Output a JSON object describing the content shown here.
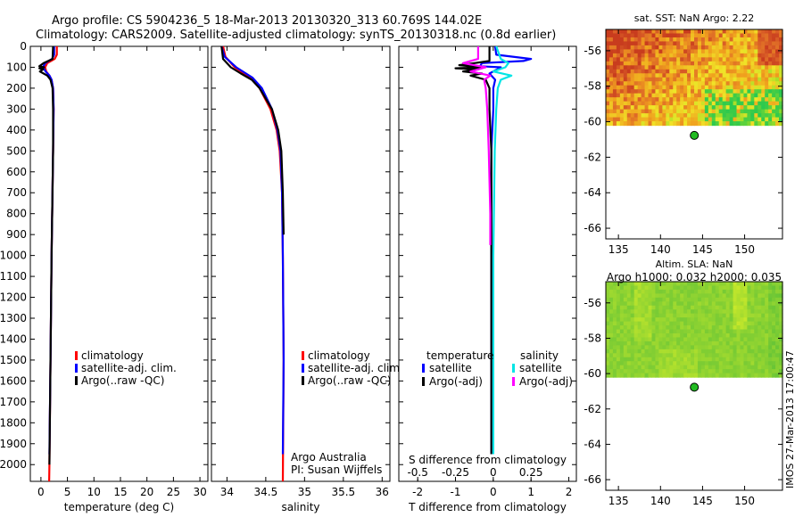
{
  "header": {
    "line1": "Argo profile: CS 5904236_5 18-Mar-2013 20130320_313 60.769S 144.02E",
    "line2": "Climatology: CARS2009. Satellite-adjusted climatology: synTS_20130318.nc (0.8d earlier)"
  },
  "colors": {
    "climatology": "#ff0000",
    "satellite": "#0000ff",
    "argo": "#000000",
    "sal_satellite": "#00e5e5",
    "sal_argo": "#ff00ff"
  },
  "chart_data": [
    {
      "type": "line",
      "id": "temperature",
      "xlabel": "temperature (deg C)",
      "ylabel": "",
      "xlim": [
        -2,
        31.5
      ],
      "ylim": [
        2080,
        0
      ],
      "xticks": [
        0,
        5,
        10,
        15,
        20,
        25,
        30
      ],
      "xtick_labels": [
        "0",
        "5",
        "10",
        "15",
        "20",
        "25",
        "30"
      ],
      "yticks": [
        0,
        100,
        200,
        300,
        400,
        500,
        600,
        700,
        800,
        900,
        1000,
        1100,
        1200,
        1300,
        1400,
        1500,
        1600,
        1700,
        1800,
        1900,
        2000
      ],
      "legend": [
        "climatology",
        "satellite-adj. clim.",
        "Argo(..raw -QC)"
      ],
      "series": [
        {
          "name": "climatology",
          "color": "#ff0000",
          "depth": [
            0,
            40,
            60,
            80,
            100,
            120,
            140,
            160,
            200,
            300,
            500,
            1000,
            1500,
            2000,
            2080
          ],
          "values": [
            3.0,
            3.0,
            2.6,
            1.2,
            0.8,
            1.0,
            1.6,
            2.0,
            2.3,
            2.4,
            2.3,
            2.0,
            1.8,
            1.6,
            1.55
          ]
        },
        {
          "name": "satellite-adj. clim.",
          "color": "#0000ff",
          "depth": [
            0,
            40,
            60,
            80,
            100,
            120,
            140,
            160,
            200,
            300,
            500,
            1000,
            1500,
            1950
          ],
          "values": [
            2.5,
            2.5,
            2.1,
            0.8,
            0.4,
            0.9,
            1.6,
            2.0,
            2.3,
            2.4,
            2.3,
            2.0,
            1.8,
            1.6
          ]
        },
        {
          "name": "Argo(..raw -QC)",
          "color": "#000000",
          "depth": [
            0,
            60,
            80,
            95,
            100,
            105,
            110,
            120,
            130,
            140,
            160,
            200,
            300,
            500,
            1000,
            1500,
            2000
          ],
          "values": [
            2.3,
            2.2,
            0.5,
            -0.3,
            0.6,
            -0.3,
            0.4,
            -0.2,
            0.5,
            1.2,
            1.8,
            2.2,
            2.3,
            2.3,
            2.0,
            1.8,
            1.6
          ]
        }
      ]
    },
    {
      "type": "line",
      "id": "salinity",
      "xlabel": "salinity",
      "ylabel": "",
      "xlim": [
        33.8,
        36.1
      ],
      "ylim": [
        2080,
        0
      ],
      "xticks": [
        34,
        34.5,
        35,
        35.5,
        36
      ],
      "xtick_labels": [
        "34",
        "34.5",
        "35",
        "35.5",
        "36"
      ],
      "legend": [
        "climatology",
        "satellite-adj. clim.",
        "Argo(..raw -QC)"
      ],
      "annotation": [
        "Argo Australia",
        "PI: Susan Wijffels"
      ],
      "series": [
        {
          "name": "climatology",
          "color": "#ff0000",
          "depth": [
            0,
            50,
            100,
            150,
            200,
            300,
            400,
            500,
            700,
            1000,
            1500,
            2080
          ],
          "values": [
            33.95,
            33.98,
            34.1,
            34.3,
            34.42,
            34.56,
            34.64,
            34.68,
            34.71,
            34.72,
            34.73,
            34.72
          ]
        },
        {
          "name": "satellite-adj. clim.",
          "color": "#0000ff",
          "depth": [
            0,
            50,
            100,
            150,
            200,
            300,
            400,
            500,
            700,
            1000,
            1500,
            1950
          ],
          "values": [
            33.93,
            33.97,
            34.12,
            34.33,
            34.45,
            34.58,
            34.65,
            34.69,
            34.71,
            34.72,
            34.73,
            34.72
          ]
        },
        {
          "name": "Argo(..raw -QC)",
          "color": "#000000",
          "depth": [
            0,
            60,
            100,
            130,
            160,
            200,
            300,
            400,
            500,
            700,
            900
          ],
          "values": [
            33.93,
            33.95,
            34.05,
            34.18,
            34.32,
            34.42,
            34.58,
            34.66,
            34.7,
            34.72,
            34.73
          ]
        }
      ]
    },
    {
      "type": "line",
      "id": "difference",
      "xlabel": "T difference from climatology",
      "top_xlabel": "S difference from climatology",
      "xlim": [
        -2.5,
        2.2
      ],
      "ylim": [
        2080,
        0
      ],
      "xticks": [
        -2,
        -1,
        0,
        1,
        2
      ],
      "xtick_labels": [
        "-2",
        "-1",
        "0",
        "1",
        "2"
      ],
      "sticks": [
        -0.5,
        -0.25,
        0,
        0.25
      ],
      "stick_labels": [
        "-0.5",
        "-0.25",
        "0",
        "0.25"
      ],
      "s_scale": 4,
      "legend_headers": [
        "temperature",
        "salinity"
      ],
      "legend": [
        "satellite",
        "Argo(-adj)",
        "satellite",
        "Argo(-adj)"
      ],
      "series": [
        {
          "name": "T satellite",
          "color": "#0000ff",
          "depth": [
            0,
            40,
            60,
            70,
            80,
            95,
            100,
            110,
            130,
            160,
            200,
            300,
            500,
            1000,
            1500,
            1950
          ],
          "values": [
            0.05,
            0.08,
            1.0,
            0.8,
            -0.3,
            -0.35,
            0.2,
            0.1,
            -0.1,
            0.05,
            0.0,
            0.0,
            -0.05,
            -0.05,
            -0.05,
            -0.05
          ]
        },
        {
          "name": "T Argo(-adj)",
          "color": "#000000",
          "depth": [
            0,
            70,
            80,
            90,
            100,
            105,
            110,
            120,
            130,
            140,
            160,
            200,
            300,
            500,
            1000,
            1500,
            1950
          ],
          "values": [
            -0.1,
            -0.1,
            -0.5,
            -0.9,
            -0.3,
            -1.0,
            -0.4,
            -0.8,
            -0.3,
            -0.6,
            -0.2,
            -0.1,
            -0.1,
            -0.05,
            -0.05,
            -0.05,
            -0.05
          ]
        },
        {
          "name": "S satellite",
          "color": "#00e5e5",
          "depth": [
            0,
            60,
            80,
            100,
            120,
            140,
            160,
            200,
            300,
            500,
            1000,
            1500,
            1950
          ],
          "values": [
            0.02,
            0.05,
            0.1,
            0.08,
            0.0,
            0.12,
            0.05,
            0.03,
            0.02,
            0.01,
            0.0,
            0.0,
            0.0
          ]
        },
        {
          "name": "S Argo(-adj)",
          "color": "#ff00ff",
          "depth": [
            0,
            60,
            80,
            100,
            120,
            140,
            160,
            200,
            300,
            500,
            800,
            950
          ],
          "values": [
            -0.1,
            -0.1,
            -0.2,
            -0.05,
            -0.15,
            -0.02,
            -0.06,
            -0.05,
            -0.04,
            -0.03,
            -0.02,
            -0.02
          ]
        }
      ]
    },
    {
      "type": "heatmap",
      "id": "sst_map",
      "title": "sat. SST: NaN Argo: 2.22",
      "xlim": [
        133.5,
        154.5
      ],
      "ylim": [
        -66.6,
        -54.8
      ],
      "xticks": [
        135,
        140,
        145,
        150
      ],
      "xtick_labels": [
        "135",
        "140",
        "145",
        "150"
      ],
      "yticks": [
        -56,
        -58,
        -60,
        -62,
        -64,
        -66
      ],
      "ytick_labels": [
        "-56",
        "-58",
        "-60",
        "-62",
        "-64",
        "-66"
      ],
      "data_lat_range": [
        -60.2,
        -54.8
      ],
      "argo_position": {
        "lon": 144.02,
        "lat": -60.769
      }
    },
    {
      "type": "heatmap",
      "id": "sla_map",
      "title": "Altim. SLA: NaN",
      "subtitle": "Argo h1000: 0.032 h2000: 0.035",
      "xlim": [
        133.5,
        154.5
      ],
      "ylim": [
        -66.6,
        -54.8
      ],
      "xticks": [
        135,
        140,
        145,
        150
      ],
      "xtick_labels": [
        "135",
        "140",
        "145",
        "150"
      ],
      "yticks": [
        -56,
        -58,
        -60,
        -62,
        -64,
        -66
      ],
      "ytick_labels": [
        "-56",
        "-58",
        "-60",
        "-62",
        "-64",
        "-66"
      ],
      "data_lat_range": [
        -60.2,
        -54.8
      ],
      "argo_position": {
        "lon": 144.02,
        "lat": -60.769
      }
    }
  ],
  "footer_stamp": "IMOS 27-Mar-2013 17:00:47"
}
